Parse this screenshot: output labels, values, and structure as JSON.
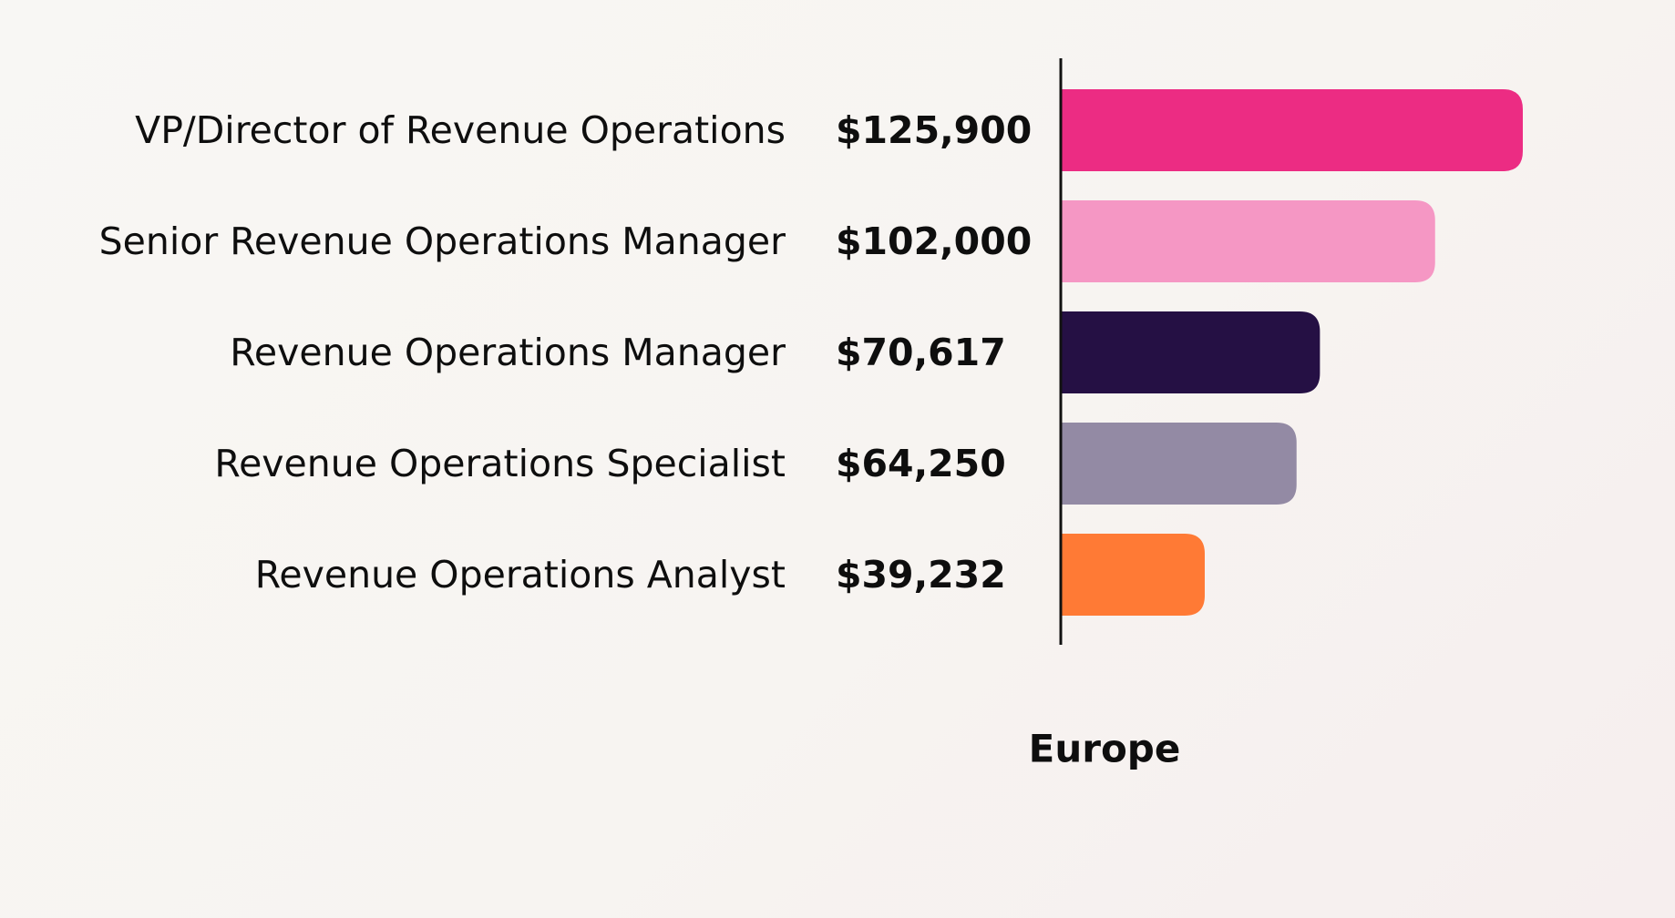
{
  "chart_data": {
    "type": "bar",
    "orientation": "horizontal",
    "categories": [
      "VP/Director of Revenue Operations",
      "Senior Revenue Operations Manager",
      "Revenue Operations Manager",
      "Revenue Operations Specialist",
      "Revenue Operations Analyst"
    ],
    "values": [
      125900,
      102000,
      70617,
      64250,
      39232
    ],
    "value_labels": [
      "$125,900",
      "$102,000",
      "$70,617",
      "$64,250",
      "$39,232"
    ],
    "bar_colors": [
      "#ec2c83",
      "#f597c4",
      "#251044",
      "#938aa4",
      "#ff7a35"
    ],
    "xlabel": "Europe",
    "grid": false,
    "legend": "none"
  }
}
